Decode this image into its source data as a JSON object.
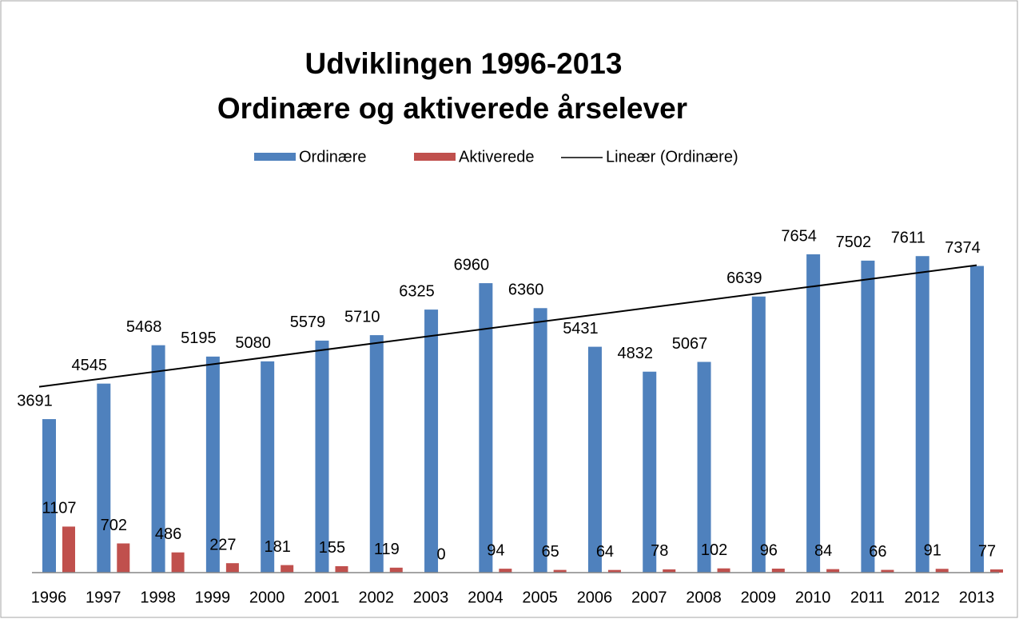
{
  "chart_data": {
    "type": "bar",
    "title": [
      "Udviklingen 1996-2013",
      "Ordinære og aktiverede årselever"
    ],
    "categories": [
      "1996",
      "1997",
      "1998",
      "1999",
      "2000",
      "2001",
      "2002",
      "2003",
      "2004",
      "2005",
      "2006",
      "2007",
      "2008",
      "2009",
      "2010",
      "2011",
      "2012",
      "2013"
    ],
    "series": [
      {
        "name": "Ordinære",
        "color": "#4f81bd",
        "values": [
          3691,
          4545,
          5468,
          5195,
          5080,
          5579,
          5710,
          6325,
          6960,
          6360,
          5431,
          4832,
          5067,
          6639,
          7654,
          7502,
          7611,
          7374
        ]
      },
      {
        "name": "Aktiverede",
        "color": "#c0504d",
        "values": [
          1107,
          702,
          486,
          227,
          181,
          155,
          119,
          0,
          94,
          65,
          64,
          78,
          102,
          96,
          84,
          66,
          91,
          77
        ]
      }
    ],
    "trendline": {
      "name": "Lineær (Ordinære)",
      "type": "linear",
      "series": 0,
      "color": "#000000"
    },
    "ylim": [
      0,
      8000
    ],
    "legend": "top",
    "data_labels": true
  }
}
